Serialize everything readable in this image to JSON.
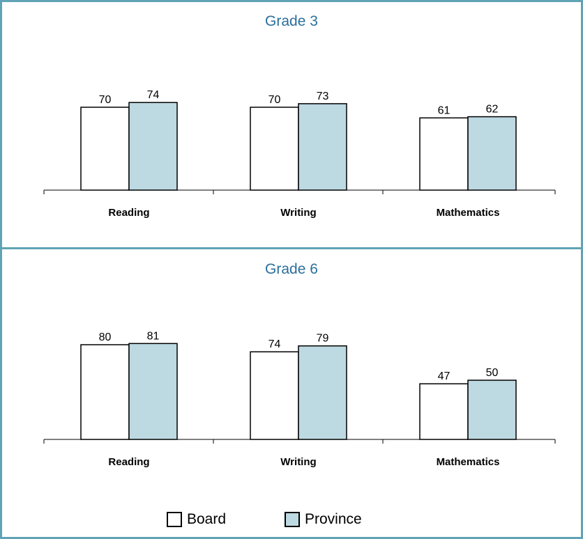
{
  "colors": {
    "frame": "#5fa3b5",
    "board": "#ffffff",
    "province": "#bdd9e2",
    "title": "#2a6f9e"
  },
  "chart_data": [
    {
      "type": "bar",
      "title": "Grade 3",
      "categories": [
        "Reading",
        "Writing",
        "Mathematics"
      ],
      "series": [
        {
          "name": "Board",
          "values": [
            70,
            70,
            61
          ]
        },
        {
          "name": "Province",
          "values": [
            74,
            73,
            62
          ]
        }
      ],
      "ylim": [
        0,
        100
      ],
      "grid": false
    },
    {
      "type": "bar",
      "title": "Grade 6",
      "categories": [
        "Reading",
        "Writing",
        "Mathematics"
      ],
      "series": [
        {
          "name": "Board",
          "values": [
            80,
            74,
            47
          ]
        },
        {
          "name": "Province",
          "values": [
            81,
            79,
            50
          ]
        }
      ],
      "ylim": [
        0,
        100
      ],
      "grid": false
    }
  ],
  "legend": {
    "items": [
      "Board",
      "Province"
    ],
    "placement": "bottom-center"
  }
}
